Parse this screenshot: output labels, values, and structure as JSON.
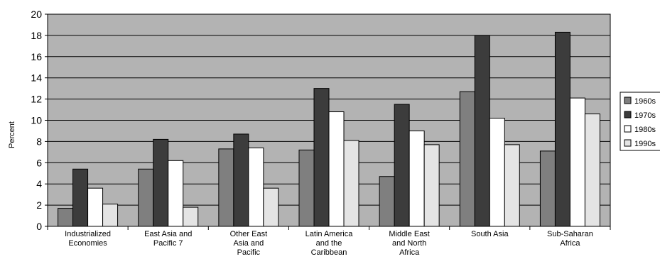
{
  "chart_data": {
    "type": "bar",
    "title": "",
    "xlabel": "",
    "ylabel": "Percent",
    "ylim": [
      0,
      20
    ],
    "yticks": [
      0,
      2,
      4,
      6,
      8,
      10,
      12,
      14,
      16,
      18,
      20
    ],
    "grid": true,
    "legend_position": "right",
    "plot_background": "#b3b3b3",
    "categories": [
      [
        "Industrialized",
        "Economies"
      ],
      [
        "East Asia and",
        "Pacific 7"
      ],
      [
        "Other East",
        "Asia and",
        "Pacific"
      ],
      [
        "Latin America",
        "and the",
        "Caribbean"
      ],
      [
        "Middle East",
        "and North",
        "Africa"
      ],
      [
        "South Asia"
      ],
      [
        "Sub-Saharan",
        "Africa"
      ]
    ],
    "series": [
      {
        "name": "1960s",
        "color": "#7f7f7f",
        "values": [
          1.7,
          5.4,
          7.3,
          7.2,
          4.7,
          12.7,
          7.1
        ]
      },
      {
        "name": "1970s",
        "color": "#3c3c3c",
        "values": [
          5.4,
          8.2,
          8.7,
          13.0,
          11.5,
          18.0,
          18.3
        ]
      },
      {
        "name": "1980s",
        "color": "#ffffff",
        "values": [
          3.6,
          6.2,
          7.4,
          10.8,
          9.0,
          10.2,
          12.1
        ]
      },
      {
        "name": "1990s",
        "color": "#e4e4e4",
        "values": [
          2.1,
          1.8,
          3.6,
          8.1,
          7.7,
          7.7,
          10.6
        ]
      }
    ]
  }
}
